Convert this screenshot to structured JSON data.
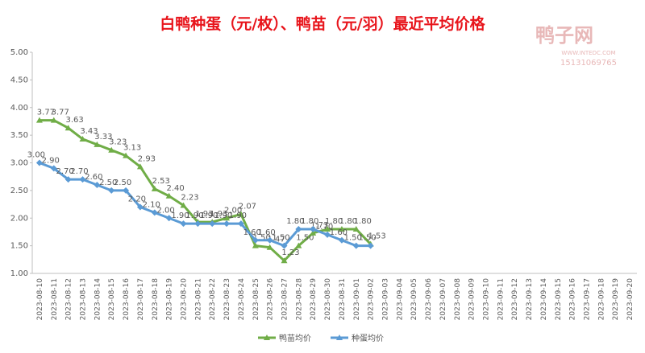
{
  "chart_data": {
    "type": "line",
    "title": "白鸭种蛋（元/枚）、鸭苗（元/羽）最近平均价格",
    "watermark": {
      "name": "鸭子网",
      "site": "WWW.INTEDC.COM",
      "phone": "15131069765"
    },
    "categories": [
      "2023-08-10",
      "2023-08-11",
      "2023-08-12",
      "2023-08-13",
      "2023-08-14",
      "2023-08-15",
      "2023-08-16",
      "2023-08-17",
      "2023-08-18",
      "2023-08-19",
      "2023-08-20",
      "2023-08-21",
      "2023-08-22",
      "2023-08-23",
      "2023-08-24",
      "2023-08-25",
      "2023-08-26",
      "2023-08-27",
      "2023-08-28",
      "2023-08-29",
      "2023-08-30",
      "2023-08-31",
      "2023-09-01",
      "2023-09-02",
      "2023-09-03",
      "2023-09-04",
      "2023-09-05",
      "2023-09-06",
      "2023-09-07",
      "2023-09-08",
      "2023-09-09",
      "2023-09-10",
      "2023-09-11",
      "2023-09-12",
      "2023-09-13",
      "2023-09-14",
      "2023-09-15",
      "2023-09-16",
      "2023-09-17",
      "2023-09-18",
      "2023-09-19",
      "2023-09-20"
    ],
    "series": [
      {
        "name": "鸭苗均价",
        "color": "#70ad47",
        "marker": "triangle",
        "values": [
          3.77,
          3.77,
          3.63,
          3.43,
          3.33,
          3.23,
          3.13,
          2.93,
          2.53,
          2.4,
          2.23,
          1.93,
          1.93,
          2.0,
          2.07,
          1.5,
          1.47,
          1.23,
          1.5,
          1.73,
          1.8,
          1.8,
          1.8,
          1.53,
          null,
          null,
          null,
          null,
          null,
          null,
          null,
          null,
          null,
          null,
          null,
          null,
          null,
          null,
          null,
          null,
          null,
          null
        ],
        "value_labels": [
          "3.77",
          "3.77",
          "3.63",
          "3.43",
          "3.33",
          "3.23",
          "3.13",
          "2.93",
          "2.53",
          "2.40",
          "2.23",
          "1.93",
          "1.93",
          "2.00",
          "2.07",
          "1.50",
          "1.47",
          "1.23",
          "1.50",
          "1.73",
          "1.80",
          "1.80",
          "1.80",
          "1.53",
          null,
          null,
          null,
          null,
          null,
          null,
          null,
          null,
          null,
          null,
          null,
          null,
          null,
          null,
          null,
          null,
          null,
          null
        ]
      },
      {
        "name": "种蛋均价",
        "color": "#5b9bd5",
        "marker": "diamond",
        "values": [
          3.0,
          2.9,
          2.7,
          2.7,
          2.6,
          2.5,
          2.5,
          2.2,
          2.1,
          2.0,
          1.9,
          1.9,
          1.9,
          1.9,
          1.9,
          1.6,
          1.6,
          1.5,
          1.8,
          1.8,
          1.7,
          1.6,
          1.5,
          1.5,
          null,
          null,
          null,
          null,
          null,
          null,
          null,
          null,
          null,
          null,
          null,
          null,
          null,
          null,
          null,
          null,
          null,
          null
        ],
        "value_labels": [
          "3.00",
          "2.90",
          "2.70",
          "2.70",
          "2.60",
          "2.50",
          "2.50",
          "2.20",
          "2.10",
          "2.00",
          "1.90",
          "1.90",
          "1.90",
          "1.90",
          "1.90",
          "1.60",
          "1.60",
          "1.50",
          "1.80",
          "1.80",
          "1.70",
          "1.60",
          "1.50",
          "1.50",
          null,
          null,
          null,
          null,
          null,
          null,
          null,
          null,
          null,
          null,
          null,
          null,
          null,
          null,
          null,
          null,
          null,
          null
        ]
      }
    ],
    "ylim": [
      1,
      5
    ],
    "yticks": [
      {
        "value": 1,
        "label": "1.00"
      },
      {
        "value": 1.5,
        "label": "1.50"
      },
      {
        "value": 2,
        "label": "2.00"
      },
      {
        "value": 2.5,
        "label": "2.50"
      },
      {
        "value": 3,
        "label": "3.00"
      },
      {
        "value": 3.5,
        "label": "3.50"
      },
      {
        "value": 4,
        "label": "4.00"
      },
      {
        "value": 4.5,
        "label": "4.50"
      },
      {
        "value": 5,
        "label": "5.00"
      }
    ],
    "grid": false,
    "legend": "bottom"
  }
}
